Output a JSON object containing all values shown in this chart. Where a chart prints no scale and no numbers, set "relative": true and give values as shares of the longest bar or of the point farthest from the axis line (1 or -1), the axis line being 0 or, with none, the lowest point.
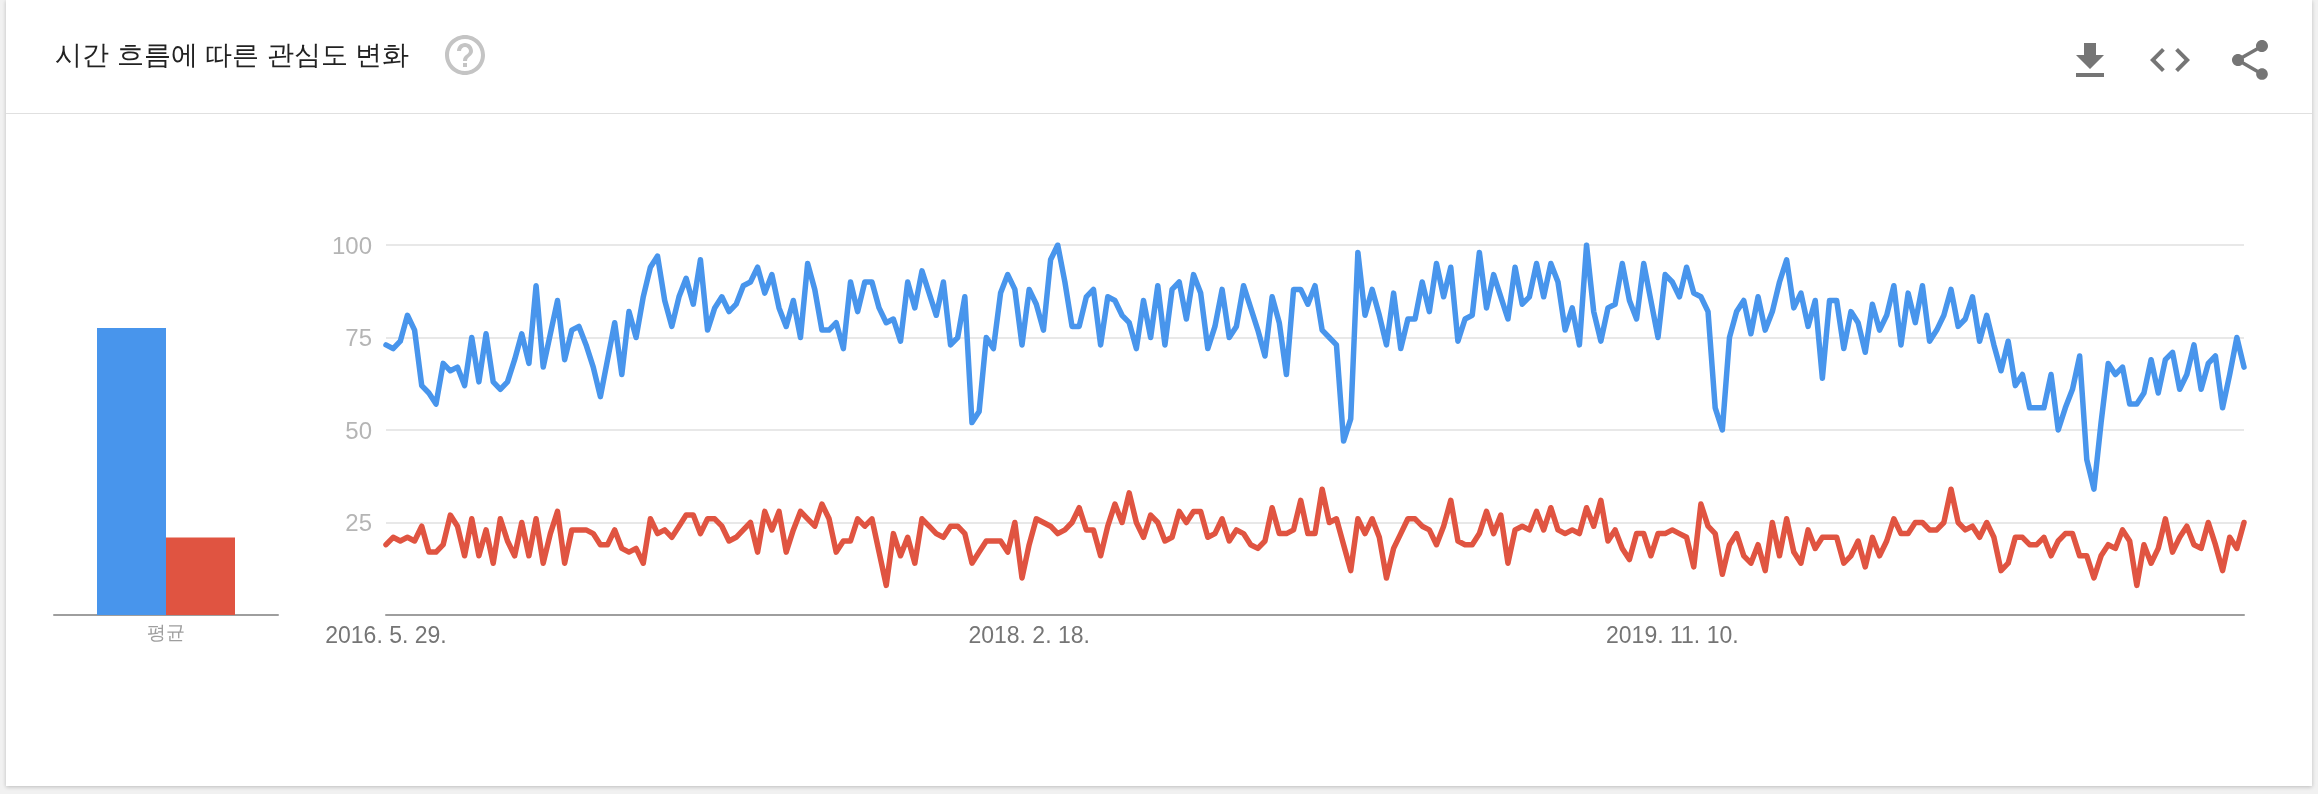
{
  "chart_data": [
    {
      "type": "bar",
      "title": "시간 흐름에 따른 관심도 변화",
      "categories": [
        "평균"
      ],
      "relative": true,
      "series": [
        {
          "color": "#4895ec",
          "values": [
            1
          ]
        },
        {
          "color": "#e05441",
          "values": [
            0.27
          ]
        }
      ]
    },
    {
      "type": "line",
      "marker": "none",
      "line_style": "solid",
      "grid": "y",
      "ylim": [
        0,
        100
      ],
      "yticks": [
        {
          "value": 0,
          "label": null
        },
        25,
        50,
        75,
        100
      ],
      "xlim": [
        "2016-05-29",
        "2021-05-23"
      ],
      "xticks": [
        {
          "value": "2016-05-29",
          "label": "2016. 5. 29."
        },
        {
          "value": "2018-02-18",
          "label": "2018. 2. 18."
        },
        {
          "value": "2019-11-10",
          "label": "2019. 11. 10."
        }
      ],
      "x": [
        "2016-05-29",
        "2016-06-05",
        "2016-06-12",
        "2016-06-19",
        "2016-06-26",
        "2016-07-03",
        "2016-07-10",
        "2016-07-17",
        "2016-07-24",
        "2016-07-31",
        "2016-08-07",
        "2016-08-14",
        "2016-08-21",
        "2016-08-28",
        "2016-09-04",
        "2016-09-11",
        "2016-09-18",
        "2016-09-25",
        "2016-10-02",
        "2016-10-09",
        "2016-10-16",
        "2016-10-23",
        "2016-10-30",
        "2016-11-06",
        "2016-11-13",
        "2016-11-20",
        "2016-11-27",
        "2016-12-04",
        "2016-12-11",
        "2016-12-18",
        "2016-12-25",
        "2017-01-01",
        "2017-01-08",
        "2017-01-15",
        "2017-01-22",
        "2017-01-29",
        "2017-02-05",
        "2017-02-12",
        "2017-02-19",
        "2017-02-26",
        "2017-03-05",
        "2017-03-12",
        "2017-03-19",
        "2017-03-26",
        "2017-04-02",
        "2017-04-09",
        "2017-04-16",
        "2017-04-23",
        "2017-04-30",
        "2017-05-07",
        "2017-05-14",
        "2017-05-21",
        "2017-05-28",
        "2017-06-04",
        "2017-06-11",
        "2017-06-18",
        "2017-06-25",
        "2017-07-02",
        "2017-07-09",
        "2017-07-16",
        "2017-07-23",
        "2017-07-30",
        "2017-08-06",
        "2017-08-13",
        "2017-08-20",
        "2017-08-27",
        "2017-09-03",
        "2017-09-10",
        "2017-09-17",
        "2017-09-24",
        "2017-10-01",
        "2017-10-08",
        "2017-10-15",
        "2017-10-22",
        "2017-10-29",
        "2017-11-05",
        "2017-11-12",
        "2017-11-19",
        "2017-11-26",
        "2017-12-03",
        "2017-12-10",
        "2017-12-17",
        "2017-12-24",
        "2017-12-31",
        "2018-01-07",
        "2018-01-14",
        "2018-01-21",
        "2018-01-28",
        "2018-02-04",
        "2018-02-11",
        "2018-02-18",
        "2018-02-25",
        "2018-03-04",
        "2018-03-11",
        "2018-03-18",
        "2018-03-25",
        "2018-04-01",
        "2018-04-08",
        "2018-04-15",
        "2018-04-22",
        "2018-04-29",
        "2018-05-06",
        "2018-05-13",
        "2018-05-20",
        "2018-05-27",
        "2018-06-03",
        "2018-06-10",
        "2018-06-17",
        "2018-06-24",
        "2018-07-01",
        "2018-07-08",
        "2018-07-15",
        "2018-07-22",
        "2018-07-29",
        "2018-08-05",
        "2018-08-12",
        "2018-08-19",
        "2018-08-26",
        "2018-09-02",
        "2018-09-09",
        "2018-09-16",
        "2018-09-23",
        "2018-09-30",
        "2018-10-07",
        "2018-10-14",
        "2018-10-21",
        "2018-10-28",
        "2018-11-04",
        "2018-11-11",
        "2018-11-18",
        "2018-11-25",
        "2018-12-02",
        "2018-12-09",
        "2018-12-16",
        "2018-12-23",
        "2018-12-30",
        "2019-01-06",
        "2019-01-13",
        "2019-01-20",
        "2019-01-27",
        "2019-02-03",
        "2019-02-10",
        "2019-02-17",
        "2019-02-24",
        "2019-03-03",
        "2019-03-10",
        "2019-03-17",
        "2019-03-24",
        "2019-03-31",
        "2019-04-07",
        "2019-04-14",
        "2019-04-21",
        "2019-04-28",
        "2019-05-05",
        "2019-05-12",
        "2019-05-19",
        "2019-05-26",
        "2019-06-02",
        "2019-06-09",
        "2019-06-16",
        "2019-06-23",
        "2019-06-30",
        "2019-07-07",
        "2019-07-14",
        "2019-07-21",
        "2019-07-28",
        "2019-08-04",
        "2019-08-11",
        "2019-08-18",
        "2019-08-25",
        "2019-09-01",
        "2019-09-08",
        "2019-09-15",
        "2019-09-22",
        "2019-09-29",
        "2019-10-06",
        "2019-10-13",
        "2019-10-20",
        "2019-10-27",
        "2019-11-03",
        "2019-11-10",
        "2019-11-17",
        "2019-11-24",
        "2019-12-01",
        "2019-12-08",
        "2019-12-15",
        "2019-12-22",
        "2019-12-29",
        "2020-01-05",
        "2020-01-12",
        "2020-01-19",
        "2020-01-26",
        "2020-02-02",
        "2020-02-09",
        "2020-02-16",
        "2020-02-23",
        "2020-03-01",
        "2020-03-08",
        "2020-03-15",
        "2020-03-22",
        "2020-03-29",
        "2020-04-05",
        "2020-04-12",
        "2020-04-19",
        "2020-04-26",
        "2020-05-03",
        "2020-05-10",
        "2020-05-17",
        "2020-05-24",
        "2020-05-31",
        "2020-06-07",
        "2020-06-14",
        "2020-06-21",
        "2020-06-28",
        "2020-07-05",
        "2020-07-12",
        "2020-07-19",
        "2020-07-26",
        "2020-08-02",
        "2020-08-09",
        "2020-08-16",
        "2020-08-23",
        "2020-08-30",
        "2020-09-06",
        "2020-09-13",
        "2020-09-20",
        "2020-09-27",
        "2020-10-04",
        "2020-10-11",
        "2020-10-18",
        "2020-10-25",
        "2020-11-01",
        "2020-11-08",
        "2020-11-15",
        "2020-11-22",
        "2020-11-29",
        "2020-12-06",
        "2020-12-13",
        "2020-12-20",
        "2020-12-27",
        "2021-01-03",
        "2021-01-10",
        "2021-01-17",
        "2021-01-24",
        "2021-01-31",
        "2021-02-07",
        "2021-02-14",
        "2021-02-21",
        "2021-02-28",
        "2021-03-07",
        "2021-03-14",
        "2021-03-21",
        "2021-03-28",
        "2021-04-04",
        "2021-04-11",
        "2021-04-18",
        "2021-04-25",
        "2021-05-02",
        "2021-05-09",
        "2021-05-16",
        "2021-05-23"
      ],
      "series": [
        {
          "color": "#4895ec",
          "values": [
            73,
            72,
            74,
            81,
            77,
            62,
            60,
            57,
            68,
            66,
            67,
            62,
            75,
            63,
            76,
            63,
            61,
            63,
            69,
            76,
            68,
            89,
            67,
            76,
            85,
            69,
            77,
            78,
            73,
            67,
            59,
            69,
            79,
            65,
            82,
            75,
            86,
            94,
            97,
            85,
            78,
            86,
            91,
            84,
            96,
            77,
            83,
            86,
            82,
            84,
            89,
            90,
            94,
            87,
            92,
            83,
            78,
            85,
            75,
            95,
            88,
            77,
            77,
            79,
            72,
            90,
            82,
            90,
            90,
            83,
            79,
            80,
            74,
            90,
            83,
            93,
            87,
            81,
            90,
            73,
            75,
            86,
            52,
            55,
            75,
            72,
            87,
            92,
            88,
            73,
            88,
            84,
            77,
            96,
            100,
            90,
            78,
            78,
            86,
            88,
            73,
            86,
            85,
            81,
            79,
            72,
            85,
            75,
            89,
            73,
            88,
            90,
            80,
            92,
            87,
            72,
            78,
            88,
            75,
            78,
            89,
            83,
            77,
            70,
            86,
            79,
            65,
            88,
            88,
            84,
            89,
            77,
            75,
            73,
            47,
            53,
            98,
            81,
            88,
            81,
            73,
            87,
            72,
            80,
            80,
            90,
            82,
            95,
            86,
            94,
            74,
            80,
            81,
            98,
            83,
            92,
            86,
            80,
            94,
            84,
            86,
            95,
            86,
            95,
            90,
            77,
            83,
            73,
            100,
            82,
            74,
            83,
            84,
            95,
            85,
            80,
            95,
            85,
            75,
            92,
            90,
            86,
            94,
            87,
            86,
            82,
            56,
            50,
            75,
            82,
            85,
            76,
            86,
            77,
            82,
            90,
            96,
            83,
            87,
            78,
            85,
            64,
            85,
            85,
            72,
            82,
            79,
            71,
            84,
            77,
            81,
            89,
            73,
            87,
            79,
            89,
            74,
            77,
            81,
            88,
            78,
            80,
            86,
            74,
            81,
            73,
            66,
            74,
            62,
            65,
            56,
            56,
            56,
            65,
            50,
            56,
            61,
            70,
            42,
            34,
            52,
            68,
            65,
            67,
            57,
            57,
            60,
            69,
            60,
            69,
            71,
            61,
            65,
            73,
            61,
            68,
            70,
            56,
            65,
            75,
            67
          ]
        },
        {
          "color": "#e05441",
          "values": [
            19,
            21,
            20,
            21,
            20,
            24,
            17,
            17,
            19,
            27,
            24,
            16,
            26,
            16,
            23,
            14,
            26,
            20,
            16,
            25,
            16,
            26,
            14,
            22,
            28,
            14,
            23,
            23,
            23,
            22,
            19,
            19,
            23,
            18,
            17,
            18,
            14,
            26,
            22,
            23,
            21,
            24,
            27,
            27,
            22,
            26,
            26,
            24,
            20,
            21,
            23,
            25,
            17,
            28,
            23,
            28,
            17,
            23,
            28,
            26,
            24,
            30,
            26,
            17,
            20,
            20,
            26,
            24,
            26,
            17,
            8,
            22,
            16,
            21,
            14,
            26,
            24,
            22,
            21,
            24,
            24,
            22,
            14,
            17,
            20,
            20,
            20,
            17,
            25,
            10,
            19,
            26,
            25,
            24,
            22,
            23,
            25,
            29,
            23,
            23,
            16,
            24,
            30,
            25,
            33,
            25,
            21,
            27,
            25,
            20,
            21,
            28,
            25,
            28,
            28,
            21,
            22,
            26,
            20,
            23,
            22,
            19,
            18,
            20,
            29,
            22,
            22,
            23,
            31,
            22,
            22,
            34,
            25,
            26,
            19,
            12,
            26,
            22,
            26,
            21,
            10,
            18,
            22,
            26,
            26,
            24,
            23,
            19,
            24,
            31,
            20,
            19,
            19,
            22,
            28,
            22,
            27,
            14,
            23,
            24,
            23,
            28,
            23,
            29,
            23,
            22,
            23,
            22,
            29,
            24,
            31,
            20,
            23,
            18,
            15,
            22,
            22,
            16,
            22,
            22,
            23,
            22,
            21,
            13,
            30,
            24,
            22,
            11,
            19,
            22,
            16,
            14,
            19,
            12,
            25,
            16,
            26,
            17,
            14,
            23,
            18,
            21,
            21,
            21,
            14,
            16,
            20,
            13,
            21,
            16,
            20,
            26,
            22,
            22,
            25,
            25,
            23,
            23,
            25,
            34,
            25,
            23,
            24,
            21,
            25,
            21,
            12,
            14,
            21,
            21,
            19,
            19,
            21,
            16,
            20,
            22,
            22,
            16,
            16,
            10,
            16,
            19,
            18,
            23,
            20,
            8,
            19,
            14,
            18,
            26,
            17,
            21,
            24,
            19,
            18,
            25,
            19,
            12,
            21,
            18,
            25
          ]
        }
      ]
    }
  ]
}
